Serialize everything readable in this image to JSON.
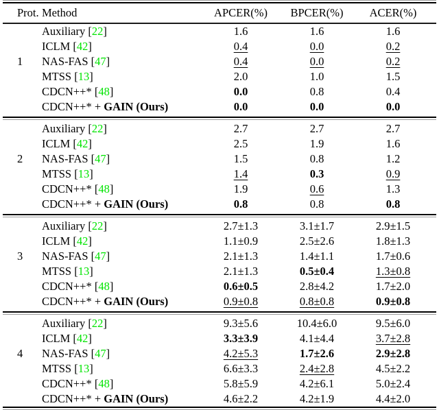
{
  "table": {
    "columns": [
      "Prot.",
      "Method",
      "APCER(%)",
      "BPCER(%)",
      "ACER(%)"
    ],
    "citation_color": "#00e400",
    "sections": [
      {
        "protocol": "1",
        "rows": [
          {
            "method": "Auxiliary",
            "cite": "22",
            "values": [
              {
                "t": "1.6"
              },
              {
                "t": "1.6"
              },
              {
                "t": "1.6"
              }
            ]
          },
          {
            "method": "ICLM",
            "cite": "42",
            "values": [
              {
                "t": "0.4",
                "u": true
              },
              {
                "t": "0.0",
                "u": true
              },
              {
                "t": "0.2",
                "u": true
              }
            ]
          },
          {
            "method": "NAS-FAS",
            "cite": "47",
            "values": [
              {
                "t": "0.4",
                "u": true
              },
              {
                "t": "0.0",
                "u": true
              },
              {
                "t": "0.2",
                "u": true
              }
            ]
          },
          {
            "method": "MTSS",
            "cite": "13",
            "values": [
              {
                "t": "2.0"
              },
              {
                "t": "1.0"
              },
              {
                "t": "1.5"
              }
            ]
          },
          {
            "method": "CDCN++*",
            "cite": "48",
            "values": [
              {
                "t": "0.0",
                "b": true
              },
              {
                "t": "0.8"
              },
              {
                "t": "0.4"
              }
            ]
          },
          {
            "method": "CDCN++* + ",
            "method_bold": "GAIN (Ours)",
            "values": [
              {
                "t": "0.0",
                "b": true
              },
              {
                "t": "0.0",
                "b": true
              },
              {
                "t": "0.0",
                "b": true
              }
            ]
          }
        ]
      },
      {
        "protocol": "2",
        "rows": [
          {
            "method": "Auxiliary",
            "cite": "22",
            "values": [
              {
                "t": "2.7"
              },
              {
                "t": "2.7"
              },
              {
                "t": "2.7"
              }
            ]
          },
          {
            "method": "ICLM",
            "cite": "42",
            "values": [
              {
                "t": "2.5"
              },
              {
                "t": "1.9"
              },
              {
                "t": "1.6"
              }
            ]
          },
          {
            "method": "NAS-FAS",
            "cite": "47",
            "values": [
              {
                "t": "1.5"
              },
              {
                "t": "0.8"
              },
              {
                "t": "1.2"
              }
            ]
          },
          {
            "method": "MTSS",
            "cite": "13",
            "values": [
              {
                "t": "1.4",
                "u": true
              },
              {
                "t": "0.3",
                "b": true
              },
              {
                "t": "0.9",
                "u": true
              }
            ]
          },
          {
            "method": "CDCN++*",
            "cite": "48",
            "values": [
              {
                "t": "1.9"
              },
              {
                "t": "0.6",
                "u": true
              },
              {
                "t": "1.3"
              }
            ]
          },
          {
            "method": "CDCN++* + ",
            "method_bold": "GAIN (Ours)",
            "values": [
              {
                "t": "0.8",
                "b": true
              },
              {
                "t": "0.8"
              },
              {
                "t": "0.8",
                "b": true
              }
            ]
          }
        ]
      },
      {
        "protocol": "3",
        "rows": [
          {
            "method": "Auxiliary",
            "cite": "22",
            "values": [
              {
                "t": "2.7±1.3"
              },
              {
                "t": "3.1±1.7"
              },
              {
                "t": "2.9±1.5"
              }
            ]
          },
          {
            "method": "ICLM",
            "cite": "42",
            "values": [
              {
                "t": "1.1±0.9"
              },
              {
                "t": "2.5±2.6"
              },
              {
                "t": "1.8±1.3"
              }
            ]
          },
          {
            "method": "NAS-FAS",
            "cite": "47",
            "values": [
              {
                "t": "2.1±1.3"
              },
              {
                "t": "1.4±1.1"
              },
              {
                "t": "1.7±0.6"
              }
            ]
          },
          {
            "method": "MTSS",
            "cite": "13",
            "values": [
              {
                "t": "2.1±1.3"
              },
              {
                "t": "0.5±0.4",
                "b": true
              },
              {
                "t": "1.3±0.8",
                "u": true
              }
            ]
          },
          {
            "method": "CDCN++*",
            "cite": "48",
            "values": [
              {
                "t": "0.6±0.5",
                "b": true
              },
              {
                "t": "2.8±4.2"
              },
              {
                "t": "1.7±2.0"
              }
            ]
          },
          {
            "method": "CDCN++* + ",
            "method_bold": "GAIN (Ours)",
            "values": [
              {
                "t": "0.9±0.8",
                "u": true
              },
              {
                "t": "0.8±0.8",
                "u": true
              },
              {
                "t": "0.9±0.8",
                "b": true
              }
            ]
          }
        ]
      },
      {
        "protocol": "4",
        "rows": [
          {
            "method": "Auxiliary",
            "cite": "22",
            "values": [
              {
                "t": "9.3±5.6"
              },
              {
                "t": "10.4±6.0"
              },
              {
                "t": "9.5±6.0"
              }
            ]
          },
          {
            "method": "ICLM",
            "cite": "42",
            "values": [
              {
                "t": "3.3±3.9",
                "b": true
              },
              {
                "t": "4.1±4.4"
              },
              {
                "t": "3.7±2.8",
                "u": true
              }
            ]
          },
          {
            "method": "NAS-FAS",
            "cite": "47",
            "values": [
              {
                "t": "4.2±5.3",
                "u": true
              },
              {
                "t": "1.7±2.6",
                "b": true
              },
              {
                "t": "2.9±2.8",
                "b": true
              }
            ]
          },
          {
            "method": "MTSS",
            "cite": "13",
            "values": [
              {
                "t": "6.6±3.3"
              },
              {
                "t": "2.4±2.8",
                "u": true
              },
              {
                "t": "4.5±2.2"
              }
            ]
          },
          {
            "method": "CDCN++*",
            "cite": "48",
            "values": [
              {
                "t": "5.8±5.9"
              },
              {
                "t": "4.2±6.1"
              },
              {
                "t": "5.0±2.4"
              }
            ]
          },
          {
            "method": "CDCN++* + ",
            "method_bold": "GAIN (Ours)",
            "values": [
              {
                "t": "4.6±2.2"
              },
              {
                "t": "4.2±1.9"
              },
              {
                "t": "4.4±2.0"
              }
            ]
          }
        ]
      }
    ]
  }
}
